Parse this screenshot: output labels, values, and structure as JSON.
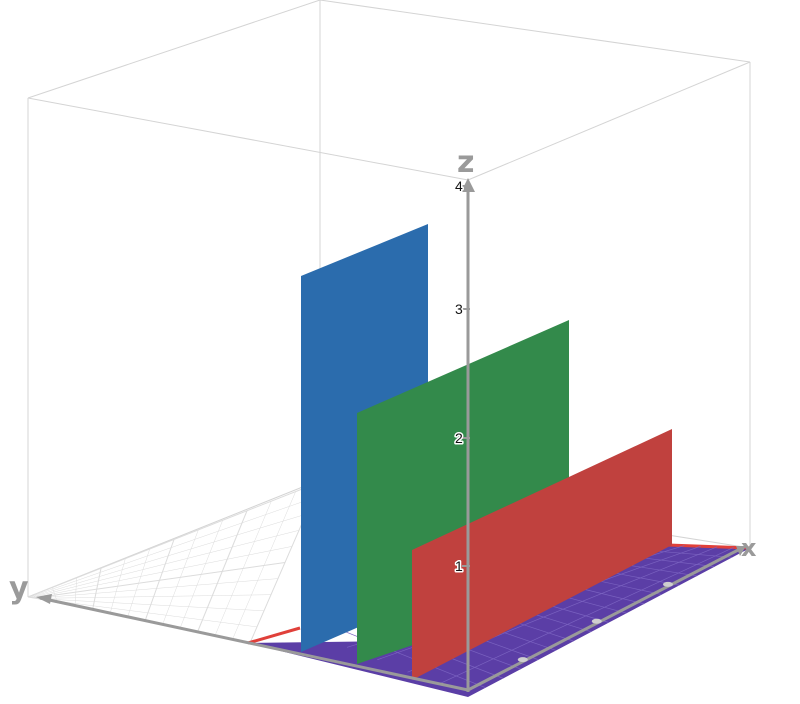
{
  "axes": {
    "x_label": "x",
    "y_label": "y",
    "z_label": "z",
    "z_ticks": [
      "1",
      "2",
      "3",
      "4"
    ],
    "axis_color": "#9a9a9a",
    "box_color": "#d4d4d4",
    "grid_color": "#dcdcdc"
  },
  "planes": [
    {
      "name": "blue-plane",
      "color": "#2b6cad"
    },
    {
      "name": "green-plane",
      "color": "#338a4b"
    },
    {
      "name": "red-plane",
      "color": "#c0413e"
    }
  ],
  "floor_plane": {
    "name": "purple-floor-plane",
    "color": "#5b3ea6",
    "edge_color": "#e0403a"
  }
}
